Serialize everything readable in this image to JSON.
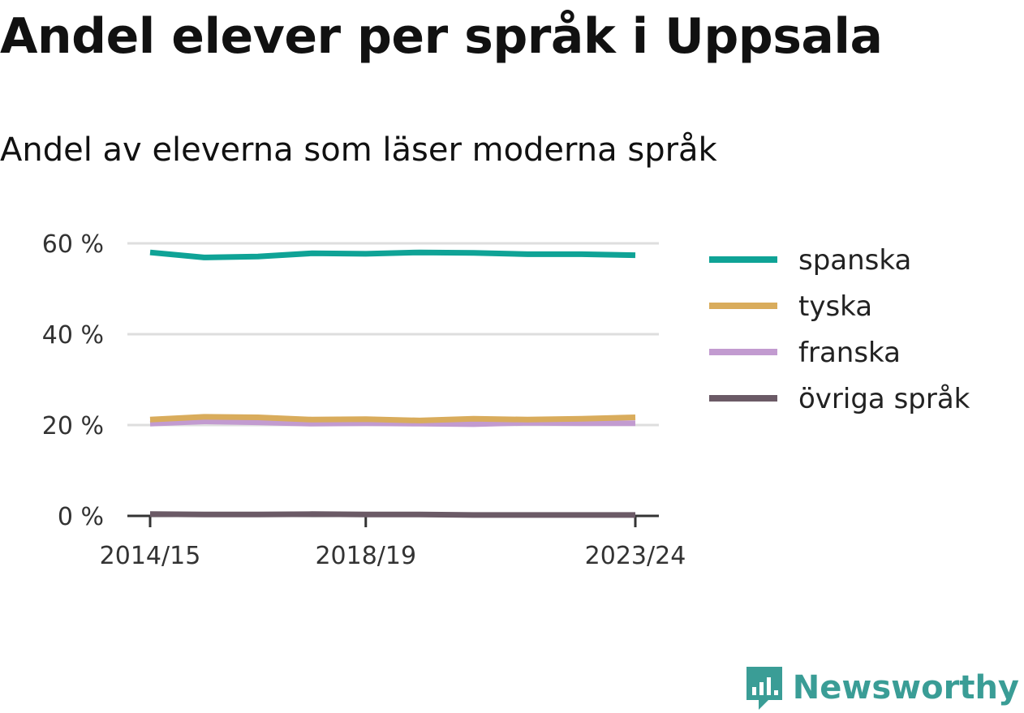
{
  "header": {
    "title": "Andel elever per språk i Uppsala",
    "subtitle": "Andel av eleverna som läser moderna språk"
  },
  "brand": {
    "name": "Newsworthy",
    "color": "#3a9d96"
  },
  "chart_data": {
    "type": "line",
    "x": [
      "2014/15",
      "2015/16",
      "2016/17",
      "2017/18",
      "2018/19",
      "2019/20",
      "2020/21",
      "2021/22",
      "2022/23",
      "2023/24"
    ],
    "x_tick_labels": [
      "2014/15",
      "2018/19",
      "2023/24"
    ],
    "y_tick_labels": [
      "0 %",
      "20 %",
      "40 %",
      "60 %"
    ],
    "y_ticks": [
      0,
      20,
      40,
      60
    ],
    "ylim": [
      0,
      60
    ],
    "grid": true,
    "legend_position": "right",
    "series": [
      {
        "name": "spanska",
        "color": "#0fa396",
        "values": [
          58.0,
          56.9,
          57.1,
          57.8,
          57.7,
          58.0,
          57.9,
          57.6,
          57.6,
          57.4
        ]
      },
      {
        "name": "tyska",
        "color": "#d9ac5c",
        "values": [
          21.2,
          21.8,
          21.7,
          21.2,
          21.3,
          21.0,
          21.4,
          21.2,
          21.4,
          21.7
        ]
      },
      {
        "name": "franska",
        "color": "#c29bd0",
        "values": [
          20.3,
          20.8,
          20.6,
          20.3,
          20.4,
          20.3,
          20.2,
          20.5,
          20.4,
          20.4
        ]
      },
      {
        "name": "övriga språk",
        "color": "#6b5a66",
        "values": [
          0.4,
          0.3,
          0.3,
          0.4,
          0.3,
          0.3,
          0.2,
          0.2,
          0.2,
          0.2
        ]
      }
    ]
  }
}
